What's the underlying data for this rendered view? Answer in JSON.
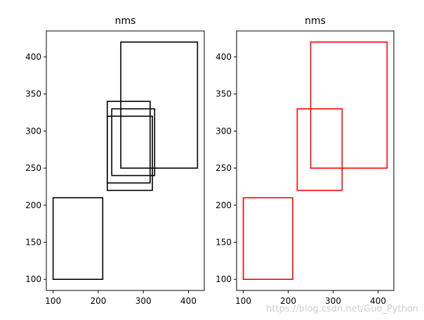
{
  "chart_data": [
    {
      "type": "rectangles",
      "title": "nms",
      "xlim": [
        85,
        435
      ],
      "ylim": [
        85,
        435
      ],
      "xticks": [
        100,
        200,
        300,
        400
      ],
      "yticks": [
        100,
        150,
        200,
        250,
        300,
        350,
        400
      ],
      "box_color": "#000000",
      "boxes": [
        {
          "x1": 100,
          "y1": 100,
          "x2": 210,
          "y2": 210
        },
        {
          "x1": 250,
          "y1": 250,
          "x2": 420,
          "y2": 420
        },
        {
          "x1": 220,
          "y1": 220,
          "x2": 320,
          "y2": 320
        },
        {
          "x1": 230,
          "y1": 240,
          "x2": 325,
          "y2": 330
        },
        {
          "x1": 220,
          "y1": 230,
          "x2": 315,
          "y2": 340
        }
      ]
    },
    {
      "type": "rectangles",
      "title": "nms",
      "xlim": [
        85,
        435
      ],
      "ylim": [
        85,
        435
      ],
      "xticks": [
        100,
        200,
        300,
        400
      ],
      "yticks": [
        100,
        150,
        200,
        250,
        300,
        350,
        400
      ],
      "box_color": "#ff0000",
      "boxes": [
        {
          "x1": 100,
          "y1": 100,
          "x2": 210,
          "y2": 210
        },
        {
          "x1": 250,
          "y1": 250,
          "x2": 420,
          "y2": 420
        },
        {
          "x1": 220,
          "y1": 220,
          "x2": 320,
          "y2": 330
        }
      ]
    }
  ],
  "watermark": "https://blog.csdn.net/Guo_Python"
}
